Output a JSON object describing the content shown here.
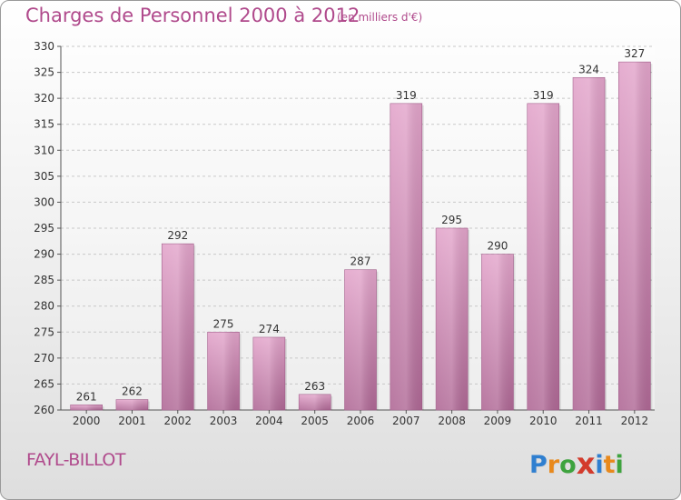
{
  "chart_data": {
    "type": "bar",
    "title": "Charges de Personnel 2000 à 2012",
    "subtitle": "(en milliers d'€)",
    "categories": [
      "2000",
      "2001",
      "2002",
      "2003",
      "2004",
      "2005",
      "2006",
      "2007",
      "2008",
      "2009",
      "2010",
      "2011",
      "2012"
    ],
    "values": [
      261,
      262,
      292,
      275,
      274,
      263,
      287,
      319,
      295,
      290,
      319,
      324,
      327
    ],
    "value_labels": [
      "261",
      "262",
      "292",
      "275",
      "274",
      "263",
      "287",
      "319",
      "295",
      "290",
      "319",
      "324",
      "327"
    ],
    "ylim": [
      260,
      330
    ],
    "yticks": [
      260,
      265,
      270,
      275,
      280,
      285,
      290,
      295,
      300,
      305,
      310,
      315,
      320,
      325,
      330
    ],
    "ytick_labels": [
      "260",
      "265",
      "270",
      "275",
      "280",
      "285",
      "290",
      "295",
      "300",
      "305",
      "310",
      "315",
      "320",
      "325",
      "330"
    ],
    "grid": true,
    "legend": "none",
    "bar_color": "#c978ab"
  },
  "commune": "FAYL-BILLOT",
  "logo": {
    "letters": [
      "P",
      "r",
      "o",
      "x",
      "i",
      "t",
      "i"
    ],
    "colors": [
      "#2f7fd0",
      "#e8891c",
      "#3ea33e",
      "#d33b2c",
      "#2f7fd0",
      "#e8891c",
      "#3ea33e"
    ]
  }
}
